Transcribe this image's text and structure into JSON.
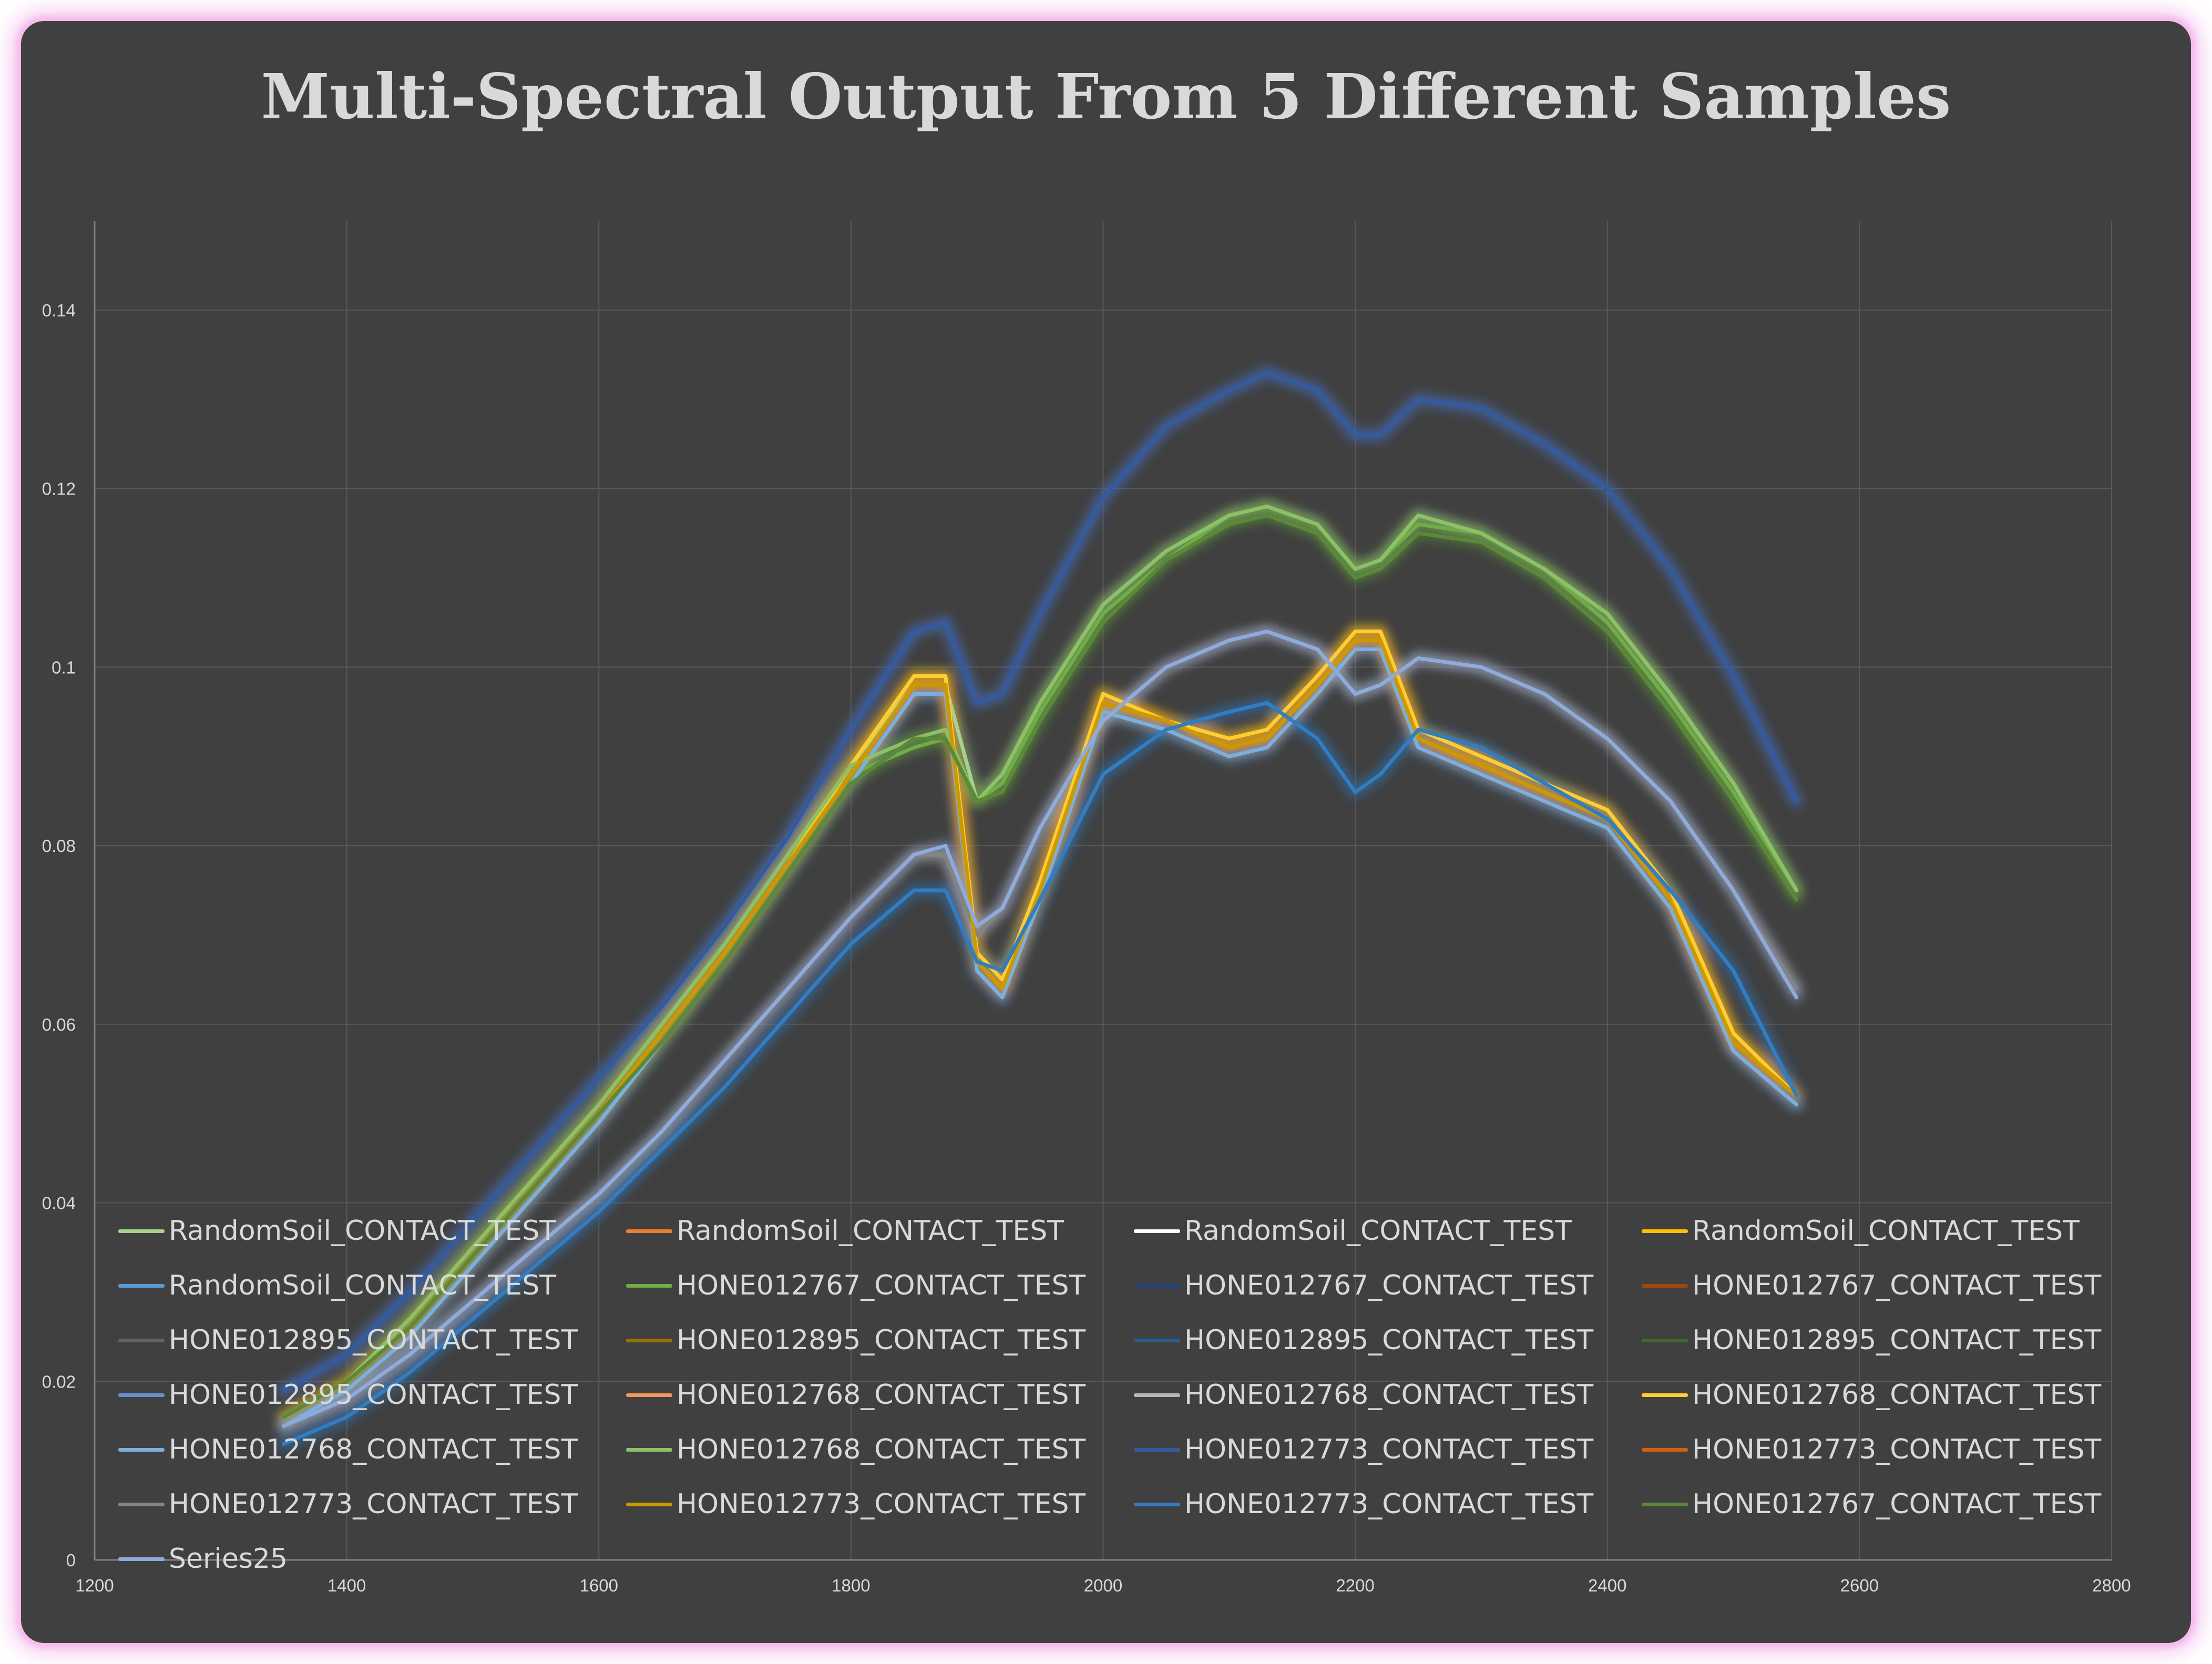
{
  "chart_data": {
    "type": "line",
    "title": "Multi-Spectral Output From 5 Different Samples",
    "xlabel": "",
    "ylabel": "",
    "xlim": [
      1200,
      2800
    ],
    "ylim": [
      0,
      0.15
    ],
    "x_ticks": [
      1200,
      1400,
      1600,
      1800,
      2000,
      2200,
      2400,
      2600,
      2800
    ],
    "y_ticks": [
      0,
      0.02,
      0.04,
      0.06,
      0.08,
      0.1,
      0.12,
      0.14
    ],
    "y_tick_labels": [
      "0",
      "0.02",
      "0.04",
      "0.06",
      "0.08",
      "0.1",
      "0.12",
      "0.14"
    ],
    "grid": true,
    "legend_position": "bottom-inside",
    "x": [
      1350,
      1400,
      1450,
      1500,
      1550,
      1600,
      1650,
      1700,
      1750,
      1800,
      1850,
      1875,
      1900,
      1920,
      1950,
      2000,
      2050,
      2100,
      2130,
      2170,
      2200,
      2220,
      2250,
      2300,
      2350,
      2400,
      2450,
      2500,
      2550
    ],
    "series": [
      {
        "name": "RandomSoil_CONTACT_TEST",
        "color": "#a9d18e",
        "values": [
          0.016,
          0.02,
          0.027,
          0.035,
          0.043,
          0.051,
          0.06,
          0.069,
          0.079,
          0.089,
          0.098,
          0.098,
          0.085,
          0.088,
          0.096,
          0.107,
          0.113,
          0.117,
          0.118,
          0.116,
          0.111,
          0.112,
          0.117,
          0.115,
          0.111,
          0.106,
          0.097,
          0.087,
          0.075
        ]
      },
      {
        "name": "RandomSoil_CONTACT_TEST",
        "color": "#ed7d31",
        "values": [
          0.016,
          0.02,
          0.026,
          0.034,
          0.042,
          0.05,
          0.059,
          0.068,
          0.078,
          0.088,
          0.098,
          0.098,
          0.067,
          0.064,
          0.075,
          0.096,
          0.094,
          0.091,
          0.092,
          0.098,
          0.103,
          0.103,
          0.092,
          0.089,
          0.086,
          0.083,
          0.074,
          0.058,
          0.052
        ]
      },
      {
        "name": "RandomSoil_CONTACT_TEST",
        "color": "#ffffff",
        "values": [
          0.016,
          0.02,
          0.026,
          0.034,
          0.042,
          0.05,
          0.059,
          0.068,
          0.078,
          0.088,
          0.098,
          0.098,
          0.067,
          0.064,
          0.075,
          0.096,
          0.094,
          0.091,
          0.092,
          0.098,
          0.103,
          0.103,
          0.092,
          0.089,
          0.086,
          0.083,
          0.074,
          0.058,
          0.052
        ]
      },
      {
        "name": "RandomSoil_CONTACT_TEST",
        "color": "#ffc000",
        "values": [
          0.016,
          0.02,
          0.026,
          0.034,
          0.042,
          0.05,
          0.059,
          0.068,
          0.078,
          0.089,
          0.099,
          0.099,
          0.068,
          0.065,
          0.076,
          0.097,
          0.094,
          0.092,
          0.093,
          0.099,
          0.104,
          0.104,
          0.093,
          0.09,
          0.087,
          0.084,
          0.075,
          0.059,
          0.052
        ]
      },
      {
        "name": "RandomSoil_CONTACT_TEST",
        "color": "#5b9bd5",
        "values": [
          0.015,
          0.019,
          0.025,
          0.033,
          0.041,
          0.049,
          0.058,
          0.067,
          0.077,
          0.087,
          0.097,
          0.097,
          0.066,
          0.063,
          0.074,
          0.095,
          0.093,
          0.09,
          0.091,
          0.097,
          0.102,
          0.102,
          0.091,
          0.088,
          0.085,
          0.082,
          0.073,
          0.057,
          0.051
        ]
      },
      {
        "name": "HONE012767_CONTACT_TEST",
        "color": "#70ad47",
        "values": [
          0.016,
          0.02,
          0.027,
          0.035,
          0.043,
          0.051,
          0.06,
          0.069,
          0.079,
          0.088,
          0.091,
          0.092,
          0.085,
          0.087,
          0.095,
          0.106,
          0.112,
          0.117,
          0.118,
          0.116,
          0.111,
          0.112,
          0.116,
          0.115,
          0.111,
          0.105,
          0.096,
          0.086,
          0.075
        ]
      },
      {
        "name": "HONE012767_CONTACT_TEST",
        "color": "#264478",
        "values": [
          0.019,
          0.023,
          0.03,
          0.038,
          0.046,
          0.054,
          0.062,
          0.071,
          0.081,
          0.093,
          0.104,
          0.105,
          0.096,
          0.097,
          0.106,
          0.119,
          0.127,
          0.131,
          0.133,
          0.131,
          0.126,
          0.126,
          0.13,
          0.129,
          0.125,
          0.12,
          0.111,
          0.099,
          0.085
        ]
      },
      {
        "name": "HONE012767_CONTACT_TEST",
        "color": "#9e480e",
        "values": [
          0.016,
          0.02,
          0.026,
          0.034,
          0.042,
          0.05,
          0.059,
          0.068,
          0.078,
          0.088,
          0.098,
          0.098,
          0.067,
          0.064,
          0.075,
          0.096,
          0.094,
          0.091,
          0.092,
          0.098,
          0.103,
          0.103,
          0.092,
          0.089,
          0.086,
          0.083,
          0.074,
          0.058,
          0.052
        ]
      },
      {
        "name": "HONE012895_CONTACT_TEST",
        "color": "#636363",
        "values": [
          0.015,
          0.018,
          0.023,
          0.029,
          0.035,
          0.041,
          0.048,
          0.056,
          0.064,
          0.072,
          0.079,
          0.079,
          0.07,
          0.073,
          0.082,
          0.094,
          0.1,
          0.103,
          0.104,
          0.102,
          0.097,
          0.098,
          0.101,
          0.1,
          0.097,
          0.092,
          0.085,
          0.075,
          0.064
        ]
      },
      {
        "name": "HONE012895_CONTACT_TEST",
        "color": "#997300",
        "values": [
          0.016,
          0.02,
          0.026,
          0.034,
          0.042,
          0.05,
          0.059,
          0.068,
          0.078,
          0.088,
          0.098,
          0.098,
          0.067,
          0.064,
          0.075,
          0.096,
          0.094,
          0.091,
          0.092,
          0.098,
          0.103,
          0.103,
          0.092,
          0.089,
          0.086,
          0.083,
          0.074,
          0.058,
          0.052
        ]
      },
      {
        "name": "HONE012895_CONTACT_TEST",
        "color": "#255e91",
        "values": [
          0.013,
          0.016,
          0.021,
          0.027,
          0.033,
          0.039,
          0.046,
          0.053,
          0.061,
          0.069,
          0.075,
          0.075,
          0.067,
          0.066,
          0.074,
          0.088,
          0.093,
          0.095,
          0.096,
          0.092,
          0.086,
          0.088,
          0.093,
          0.091,
          0.087,
          0.083,
          0.075,
          0.066,
          0.052
        ]
      },
      {
        "name": "HONE012895_CONTACT_TEST",
        "color": "#43682b",
        "values": [
          0.016,
          0.02,
          0.026,
          0.034,
          0.042,
          0.05,
          0.058,
          0.067,
          0.077,
          0.087,
          0.092,
          0.092,
          0.085,
          0.086,
          0.094,
          0.105,
          0.112,
          0.116,
          0.117,
          0.115,
          0.11,
          0.111,
          0.115,
          0.114,
          0.11,
          0.104,
          0.095,
          0.085,
          0.074
        ]
      },
      {
        "name": "HONE012895_CONTACT_TEST",
        "color": "#698ed0",
        "values": [
          0.019,
          0.023,
          0.03,
          0.038,
          0.046,
          0.054,
          0.062,
          0.071,
          0.081,
          0.093,
          0.104,
          0.105,
          0.096,
          0.097,
          0.106,
          0.119,
          0.127,
          0.131,
          0.133,
          0.131,
          0.126,
          0.126,
          0.13,
          0.129,
          0.125,
          0.12,
          0.111,
          0.099,
          0.085
        ]
      },
      {
        "name": "HONE012768_CONTACT_TEST",
        "color": "#f1975a",
        "values": [
          0.016,
          0.02,
          0.026,
          0.034,
          0.042,
          0.05,
          0.059,
          0.068,
          0.078,
          0.088,
          0.098,
          0.098,
          0.067,
          0.064,
          0.075,
          0.096,
          0.094,
          0.091,
          0.092,
          0.098,
          0.103,
          0.103,
          0.092,
          0.089,
          0.086,
          0.083,
          0.074,
          0.058,
          0.052
        ]
      },
      {
        "name": "HONE012768_CONTACT_TEST",
        "color": "#b7b7b7",
        "values": [
          0.015,
          0.018,
          0.023,
          0.029,
          0.035,
          0.041,
          0.048,
          0.056,
          0.064,
          0.072,
          0.079,
          0.079,
          0.07,
          0.073,
          0.082,
          0.094,
          0.1,
          0.103,
          0.104,
          0.102,
          0.097,
          0.098,
          0.101,
          0.1,
          0.097,
          0.092,
          0.085,
          0.075,
          0.064
        ]
      },
      {
        "name": "HONE012768_CONTACT_TEST",
        "color": "#ffcd33",
        "values": [
          0.016,
          0.02,
          0.026,
          0.034,
          0.042,
          0.05,
          0.059,
          0.068,
          0.078,
          0.089,
          0.099,
          0.099,
          0.068,
          0.065,
          0.076,
          0.097,
          0.094,
          0.092,
          0.093,
          0.099,
          0.104,
          0.104,
          0.093,
          0.09,
          0.087,
          0.084,
          0.075,
          0.059,
          0.052
        ]
      },
      {
        "name": "HONE012768_CONTACT_TEST",
        "color": "#7cafdd",
        "values": [
          0.015,
          0.019,
          0.025,
          0.033,
          0.041,
          0.049,
          0.058,
          0.067,
          0.077,
          0.087,
          0.097,
          0.097,
          0.066,
          0.063,
          0.074,
          0.095,
          0.093,
          0.09,
          0.091,
          0.097,
          0.102,
          0.102,
          0.091,
          0.088,
          0.085,
          0.082,
          0.073,
          0.057,
          0.051
        ]
      },
      {
        "name": "HONE012768_CONTACT_TEST",
        "color": "#8cc168",
        "values": [
          0.016,
          0.02,
          0.027,
          0.035,
          0.043,
          0.051,
          0.06,
          0.069,
          0.079,
          0.089,
          0.092,
          0.093,
          0.085,
          0.088,
          0.096,
          0.107,
          0.113,
          0.117,
          0.118,
          0.116,
          0.111,
          0.112,
          0.117,
          0.115,
          0.111,
          0.106,
          0.097,
          0.087,
          0.075
        ]
      },
      {
        "name": "HONE012773_CONTACT_TEST",
        "color": "#335aa1",
        "values": [
          0.019,
          0.023,
          0.03,
          0.038,
          0.046,
          0.054,
          0.062,
          0.071,
          0.081,
          0.093,
          0.104,
          0.105,
          0.096,
          0.097,
          0.106,
          0.119,
          0.127,
          0.131,
          0.133,
          0.131,
          0.126,
          0.126,
          0.13,
          0.129,
          0.125,
          0.12,
          0.111,
          0.099,
          0.085
        ]
      },
      {
        "name": "HONE012773_CONTACT_TEST",
        "color": "#d26012",
        "values": [
          0.016,
          0.02,
          0.026,
          0.034,
          0.042,
          0.05,
          0.059,
          0.068,
          0.078,
          0.088,
          0.098,
          0.098,
          0.067,
          0.064,
          0.075,
          0.096,
          0.094,
          0.091,
          0.092,
          0.098,
          0.103,
          0.103,
          0.092,
          0.089,
          0.086,
          0.083,
          0.074,
          0.058,
          0.052
        ]
      },
      {
        "name": "HONE012773_CONTACT_TEST",
        "color": "#848484",
        "values": [
          0.015,
          0.018,
          0.023,
          0.029,
          0.035,
          0.041,
          0.048,
          0.056,
          0.064,
          0.072,
          0.079,
          0.079,
          0.07,
          0.073,
          0.082,
          0.094,
          0.1,
          0.103,
          0.104,
          0.102,
          0.097,
          0.098,
          0.101,
          0.1,
          0.097,
          0.092,
          0.085,
          0.075,
          0.064
        ]
      },
      {
        "name": "HONE012773_CONTACT_TEST",
        "color": "#cc9a00",
        "values": [
          0.016,
          0.02,
          0.026,
          0.034,
          0.042,
          0.05,
          0.059,
          0.068,
          0.078,
          0.088,
          0.098,
          0.098,
          0.067,
          0.064,
          0.075,
          0.096,
          0.094,
          0.091,
          0.092,
          0.098,
          0.103,
          0.103,
          0.092,
          0.089,
          0.086,
          0.083,
          0.074,
          0.058,
          0.052
        ]
      },
      {
        "name": "HONE012773_CONTACT_TEST",
        "color": "#327dc2",
        "values": [
          0.013,
          0.016,
          0.021,
          0.027,
          0.033,
          0.039,
          0.046,
          0.053,
          0.061,
          0.069,
          0.075,
          0.075,
          0.067,
          0.066,
          0.074,
          0.088,
          0.093,
          0.095,
          0.096,
          0.092,
          0.086,
          0.088,
          0.093,
          0.091,
          0.087,
          0.083,
          0.075,
          0.066,
          0.052
        ]
      },
      {
        "name": "HONE012767_CONTACT_TEST",
        "color": "#5a8a39",
        "values": [
          0.016,
          0.02,
          0.026,
          0.034,
          0.042,
          0.05,
          0.058,
          0.067,
          0.077,
          0.087,
          0.092,
          0.092,
          0.085,
          0.086,
          0.094,
          0.105,
          0.112,
          0.116,
          0.117,
          0.115,
          0.11,
          0.111,
          0.115,
          0.114,
          0.11,
          0.104,
          0.095,
          0.085,
          0.074
        ]
      },
      {
        "name": "Series25",
        "color": "#8faadc",
        "values": [
          0.015,
          0.018,
          0.023,
          0.029,
          0.035,
          0.041,
          0.048,
          0.056,
          0.064,
          0.072,
          0.079,
          0.08,
          0.071,
          0.073,
          0.082,
          0.094,
          0.1,
          0.103,
          0.104,
          0.102,
          0.097,
          0.098,
          0.101,
          0.1,
          0.097,
          0.092,
          0.085,
          0.075,
          0.063
        ]
      }
    ]
  }
}
